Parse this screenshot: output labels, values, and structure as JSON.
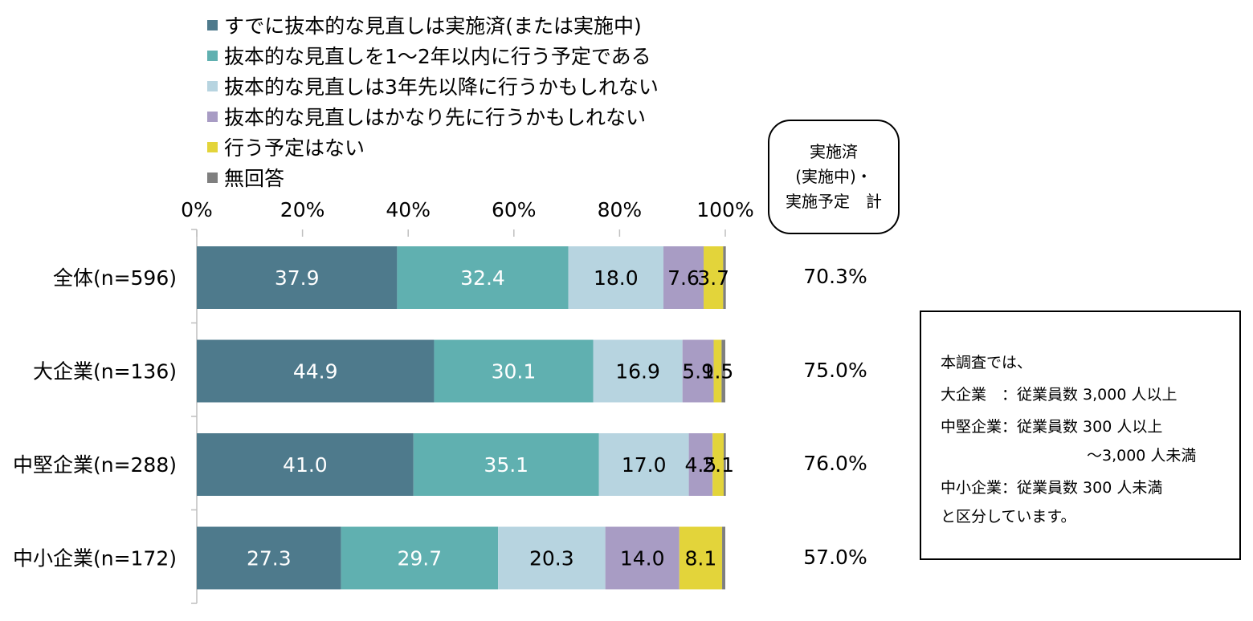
{
  "chart_data": {
    "type": "bar",
    "orientation": "horizontal",
    "stacked": true,
    "categories": [
      "全体(n=596)",
      "大企業(n=136)",
      "中堅企業(n=288)",
      "中小企業(n=172)"
    ],
    "series": [
      {
        "name": "すでに抜本的な見直しは実施済(または実施中)",
        "color": "#4e7a8c",
        "label_color": "#ffffff",
        "values": [
          37.9,
          44.9,
          41.0,
          27.3
        ],
        "labels": [
          "37.9",
          "44.9",
          "41.0",
          "27.3"
        ]
      },
      {
        "name": "抜本的な見直しを1～2年以内に行う予定である",
        "color": "#60b0b0",
        "label_color": "#ffffff",
        "values": [
          32.4,
          30.1,
          35.1,
          29.7
        ],
        "labels": [
          "32.4",
          "30.1",
          "35.1",
          "29.7"
        ]
      },
      {
        "name": "抜本的な見直しは3年先以降に行うかもしれない",
        "color": "#b7d4e0",
        "label_color": "#000000",
        "values": [
          18.0,
          16.9,
          17.0,
          20.3
        ],
        "labels": [
          "18.0",
          "16.9",
          "17.0",
          "20.3"
        ]
      },
      {
        "name": "抜本的な見直しはかなり先に行うかもしれない",
        "color": "#a89cc4",
        "label_color": "#000000",
        "values": [
          7.6,
          5.9,
          4.5,
          14.0
        ],
        "labels": [
          "7.6",
          "5.9",
          "4.5",
          "14.0"
        ]
      },
      {
        "name": "行う予定はない",
        "color": "#e3d43a",
        "label_color": "#000000",
        "values": [
          3.7,
          1.5,
          2.1,
          8.1
        ],
        "labels": [
          "3.7",
          "1.5",
          "2.1",
          "8.1"
        ]
      },
      {
        "name": "無回答",
        "color": "#7f7f7f",
        "label_color": "#000000",
        "values": [
          0.5,
          0.7,
          0.4,
          0.6
        ],
        "labels": [
          "",
          "",
          "",
          ""
        ]
      }
    ],
    "xlim": [
      0,
      100
    ],
    "x_ticks": [
      "0%",
      "20%",
      "40%",
      "60%",
      "80%",
      "100%"
    ],
    "x_tick_values": [
      0,
      20,
      40,
      60,
      80,
      100
    ],
    "xaxis_position": "top",
    "legend_position": "top-left",
    "grid": false
  },
  "total_column": {
    "header": "実施済\n(実施中)・\n実施予定　計",
    "values": [
      "70.3%",
      "75.0%",
      "76.0%",
      "57.0%"
    ]
  },
  "note": {
    "lines": [
      "本調査では、",
      "大企業　：従業員数 3,000 人以上",
      "中堅企業：従業員数 300 人以上",
      "～3,000 人未満",
      "中小企業：従業員数 300 人未満",
      "と区分しています。"
    ]
  }
}
